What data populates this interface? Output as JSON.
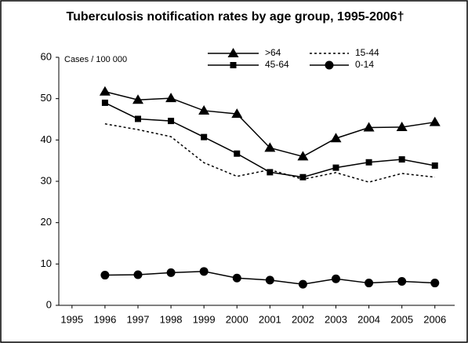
{
  "chart_data": {
    "type": "line",
    "title": "Tuberculosis notification rates by age group, 1995-2006†",
    "annotation": "Cases / 100 000",
    "x": [
      1996,
      1997,
      1998,
      1999,
      2000,
      2001,
      2002,
      2003,
      2004,
      2005,
      2006
    ],
    "xlim": [
      1994.6,
      2006.6
    ],
    "xticks": [
      1995,
      1996,
      1997,
      1998,
      1999,
      2000,
      2001,
      2002,
      2003,
      2004,
      2005,
      2006
    ],
    "ylim": [
      0,
      60
    ],
    "yticks": [
      0,
      10,
      20,
      30,
      40,
      50,
      60
    ],
    "grid": false,
    "series": [
      {
        "name": ">64",
        "color": "#000000",
        "marker": "triangle",
        "dash": false,
        "values": [
          51.7,
          49.7,
          50.1,
          47.1,
          46.3,
          38.1,
          36.0,
          40.4,
          43.0,
          43.1,
          44.3
        ]
      },
      {
        "name": "15-44",
        "color": "#000000",
        "marker": "none",
        "dash": true,
        "values": [
          43.9,
          42.5,
          40.8,
          34.5,
          31.2,
          32.8,
          30.5,
          32.1,
          29.8,
          31.9,
          31.0
        ]
      },
      {
        "name": "45-64",
        "color": "#000000",
        "marker": "square",
        "dash": false,
        "values": [
          49.0,
          45.1,
          44.6,
          40.7,
          36.7,
          32.2,
          31.0,
          33.3,
          34.6,
          35.3,
          33.8
        ]
      },
      {
        "name": "0-14",
        "color": "#000000",
        "marker": "circle",
        "dash": false,
        "values": [
          7.3,
          7.4,
          7.9,
          8.2,
          6.6,
          6.1,
          5.1,
          6.4,
          5.4,
          5.8,
          5.4
        ]
      }
    ]
  }
}
